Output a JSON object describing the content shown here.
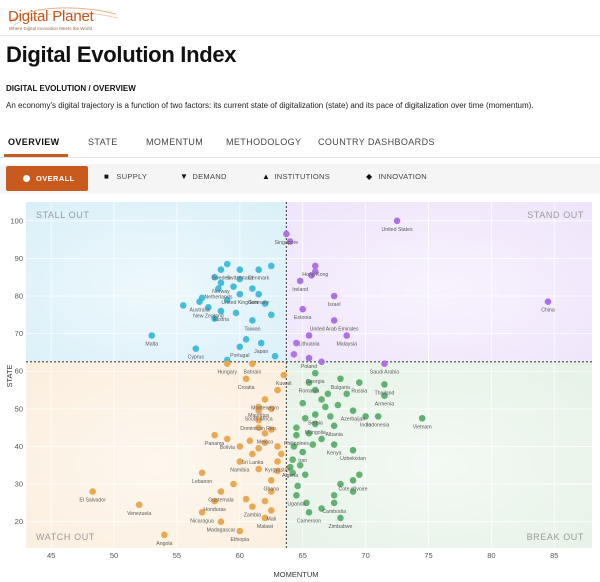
{
  "logo": {
    "name": "Digital Planet",
    "tagline": "Where Digital Innovation Meets the World"
  },
  "page_title": "Digital Evolution Index",
  "section_label": "DIGITAL EVOLUTION / OVERVIEW",
  "description": "An economy's digital trajectory is a function of two factors: its current state of digitalization (state) and its pace of digitalization over time (momentum).",
  "tabs": [
    {
      "label": "OVERVIEW",
      "active": true
    },
    {
      "label": "STATE"
    },
    {
      "label": "MOMENTUM"
    },
    {
      "label": "METHODOLOGY"
    },
    {
      "label": "COUNTRY DASHBOARDS"
    }
  ],
  "filters": [
    {
      "label": "OVERALL",
      "icon": "circle-icon",
      "active": true
    },
    {
      "label": "SUPPLY",
      "icon": "square-icon"
    },
    {
      "label": "DEMAND",
      "icon": "triangle-down-icon"
    },
    {
      "label": "INSTITUTIONS",
      "icon": "triangle-up-icon"
    },
    {
      "label": "INNOVATION",
      "icon": "diamond-icon"
    }
  ],
  "colors": {
    "accent": "#c85a1e",
    "stall_out": "#3bb7d6",
    "stand_out": "#a96ae6",
    "watch_out": "#e8a34b",
    "break_out": "#5aab6b"
  },
  "chart_data": {
    "type": "scatter",
    "xlabel": "MOMENTUM",
    "ylabel": "STATE",
    "xlim": [
      43,
      88
    ],
    "ylim": [
      13,
      105
    ],
    "xticks": [
      45,
      50,
      55,
      60,
      65,
      70,
      75,
      80,
      85
    ],
    "yticks": [
      20,
      30,
      40,
      50,
      60,
      70,
      80,
      90,
      100
    ],
    "divider": {
      "x": 63.7,
      "y": 62.5
    },
    "quadrants": [
      {
        "key": "stall_out",
        "label": "STALL OUT",
        "position": "top-left"
      },
      {
        "key": "stand_out",
        "label": "STAND OUT",
        "position": "top-right"
      },
      {
        "key": "watch_out",
        "label": "WATCH OUT",
        "position": "bottom-left"
      },
      {
        "key": "break_out",
        "label": "BREAK OUT",
        "position": "bottom-right"
      }
    ],
    "labeled_points": [
      {
        "name": "United States",
        "x": 72.5,
        "y": 100,
        "q": "stand_out"
      },
      {
        "name": "Singapore",
        "x": 63.7,
        "y": 96.5,
        "q": "stand_out"
      },
      {
        "name": "China",
        "x": 84.5,
        "y": 78.5,
        "q": "stand_out"
      },
      {
        "name": "Hong Kong",
        "x": 66,
        "y": 88,
        "q": "stand_out"
      },
      {
        "name": "Ireland",
        "x": 64.8,
        "y": 84,
        "q": "stand_out"
      },
      {
        "name": "Israel",
        "x": 67.5,
        "y": 80,
        "q": "stand_out"
      },
      {
        "name": "Estonia",
        "x": 65,
        "y": 76.5,
        "q": "stand_out"
      },
      {
        "name": "United Arab Emirates",
        "x": 67.5,
        "y": 73.5,
        "q": "stand_out"
      },
      {
        "name": "Lithuania",
        "x": 65.5,
        "y": 69.5,
        "q": "stand_out"
      },
      {
        "name": "Malaysia",
        "x": 68.5,
        "y": 69.5,
        "q": "stand_out"
      },
      {
        "name": "Poland",
        "x": 65.5,
        "y": 63.5,
        "q": "stand_out"
      },
      {
        "name": "Saudi Arabia",
        "x": 71.5,
        "y": 62,
        "q": "stand_out"
      },
      {
        "name": "Sweden",
        "x": 58.5,
        "y": 87,
        "q": "stall_out"
      },
      {
        "name": "Switzerland",
        "x": 60,
        "y": 87,
        "q": "stall_out"
      },
      {
        "name": "Denmark",
        "x": 61.5,
        "y": 87,
        "q": "stall_out"
      },
      {
        "name": "Norway",
        "x": 58.5,
        "y": 83.5,
        "q": "stall_out"
      },
      {
        "name": "Netherlands",
        "x": 58.3,
        "y": 82,
        "q": "stall_out"
      },
      {
        "name": "United Kingdom",
        "x": 60,
        "y": 80.5,
        "q": "stall_out"
      },
      {
        "name": "Germany",
        "x": 61.5,
        "y": 80.5,
        "q": "stall_out"
      },
      {
        "name": "Australia",
        "x": 56.8,
        "y": 78.5,
        "q": "stall_out"
      },
      {
        "name": "New Zealand",
        "x": 57.5,
        "y": 77,
        "q": "stall_out"
      },
      {
        "name": "Austria",
        "x": 58.5,
        "y": 76,
        "q": "stall_out"
      },
      {
        "name": "Taiwan",
        "x": 61,
        "y": 73.5,
        "q": "stall_out"
      },
      {
        "name": "Malta",
        "x": 53,
        "y": 69.5,
        "q": "stall_out"
      },
      {
        "name": "Cyprus",
        "x": 56.5,
        "y": 66,
        "q": "stall_out"
      },
      {
        "name": "Portugal",
        "x": 60,
        "y": 66.5,
        "q": "stall_out"
      },
      {
        "name": "Japan",
        "x": 61.7,
        "y": 67.5,
        "q": "stall_out"
      },
      {
        "name": "Hungary",
        "x": 59,
        "y": 62,
        "q": "watch_out"
      },
      {
        "name": "Bahrain",
        "x": 61,
        "y": 62,
        "q": "watch_out"
      },
      {
        "name": "Croatia",
        "x": 60.5,
        "y": 58,
        "q": "watch_out"
      },
      {
        "name": "Kuwait",
        "x": 63.5,
        "y": 59,
        "q": "watch_out"
      },
      {
        "name": "Montenegro",
        "x": 62,
        "y": 52.5,
        "q": "watch_out"
      },
      {
        "name": "Mauritius",
        "x": 61.5,
        "y": 50.5,
        "q": "watch_out"
      },
      {
        "name": "South Africa",
        "x": 61.5,
        "y": 49.5,
        "q": "watch_out"
      },
      {
        "name": "Dominican Rep.",
        "x": 61.5,
        "y": 47,
        "q": "watch_out"
      },
      {
        "name": "Mexico",
        "x": 62,
        "y": 43.5,
        "q": "watch_out"
      },
      {
        "name": "Panama",
        "x": 58,
        "y": 43,
        "q": "watch_out"
      },
      {
        "name": "Bolivia",
        "x": 59,
        "y": 42,
        "q": "watch_out"
      },
      {
        "name": "Sri Lanka",
        "x": 61,
        "y": 38,
        "q": "watch_out"
      },
      {
        "name": "Namibia",
        "x": 60,
        "y": 36,
        "q": "watch_out"
      },
      {
        "name": "Kyrgyzstan",
        "x": 63,
        "y": 36,
        "q": "watch_out"
      },
      {
        "name": "Lebanon",
        "x": 57,
        "y": 33,
        "q": "watch_out"
      },
      {
        "name": "Ghana",
        "x": 62.5,
        "y": 31,
        "q": "watch_out"
      },
      {
        "name": "Guatemala",
        "x": 58.5,
        "y": 28,
        "q": "watch_out"
      },
      {
        "name": "Honduras",
        "x": 58,
        "y": 25.5,
        "q": "watch_out"
      },
      {
        "name": "El Salvador",
        "x": 48.3,
        "y": 28,
        "q": "watch_out"
      },
      {
        "name": "Venezuela",
        "x": 52,
        "y": 24.5,
        "q": "watch_out"
      },
      {
        "name": "Nicaragua",
        "x": 57,
        "y": 22.5,
        "q": "watch_out"
      },
      {
        "name": "Zambia",
        "x": 61,
        "y": 24,
        "q": "watch_out"
      },
      {
        "name": "Mali",
        "x": 62.5,
        "y": 23,
        "q": "watch_out"
      },
      {
        "name": "Madagascar",
        "x": 58.5,
        "y": 20,
        "q": "watch_out"
      },
      {
        "name": "Malawi",
        "x": 62,
        "y": 21,
        "q": "watch_out"
      },
      {
        "name": "Angola",
        "x": 54,
        "y": 16.5,
        "q": "watch_out"
      },
      {
        "name": "Ethiopia",
        "x": 60,
        "y": 17.5,
        "q": "watch_out"
      },
      {
        "name": "Georgia",
        "x": 66,
        "y": 59.5,
        "q": "break_out"
      },
      {
        "name": "Romania",
        "x": 65.5,
        "y": 57,
        "q": "break_out"
      },
      {
        "name": "Bulgaria",
        "x": 68,
        "y": 58,
        "q": "break_out"
      },
      {
        "name": "Russia",
        "x": 69.5,
        "y": 57,
        "q": "break_out"
      },
      {
        "name": "Thailand",
        "x": 71.5,
        "y": 56.5,
        "q": "break_out"
      },
      {
        "name": "Armenia",
        "x": 71.5,
        "y": 53.5,
        "q": "break_out"
      },
      {
        "name": "Azerbaijan",
        "x": 69,
        "y": 49.5,
        "q": "break_out"
      },
      {
        "name": "Serbia",
        "x": 66,
        "y": 48.5,
        "q": "break_out"
      },
      {
        "name": "Mongolia",
        "x": 66,
        "y": 46,
        "q": "break_out"
      },
      {
        "name": "Albania",
        "x": 67.5,
        "y": 45.5,
        "q": "break_out"
      },
      {
        "name": "India",
        "x": 70,
        "y": 48,
        "q": "break_out"
      },
      {
        "name": "Indonesia",
        "x": 71,
        "y": 48,
        "q": "break_out"
      },
      {
        "name": "Vietnam",
        "x": 74.5,
        "y": 47.5,
        "q": "break_out"
      },
      {
        "name": "Philippines",
        "x": 64.5,
        "y": 43,
        "q": "break_out"
      },
      {
        "name": "Kenya",
        "x": 67.5,
        "y": 40.5,
        "q": "break_out"
      },
      {
        "name": "Uzbekistan",
        "x": 69,
        "y": 39,
        "q": "break_out"
      },
      {
        "name": "Iran",
        "x": 65,
        "y": 38.5,
        "q": "break_out"
      },
      {
        "name": "Algeria",
        "x": 64,
        "y": 34.5,
        "q": "break_out"
      },
      {
        "name": "Cote d'Ivoire",
        "x": 69,
        "y": 31,
        "q": "break_out"
      },
      {
        "name": "Uganda",
        "x": 64.5,
        "y": 27,
        "q": "break_out"
      },
      {
        "name": "Cambodia",
        "x": 67.5,
        "y": 25,
        "q": "break_out"
      },
      {
        "name": "Cameroon",
        "x": 65.5,
        "y": 22.5,
        "q": "break_out"
      },
      {
        "name": "Zimbabwe",
        "x": 68,
        "y": 21,
        "q": "break_out"
      }
    ],
    "unlabeled_points": [
      {
        "x": 62.5,
        "y": 88,
        "q": "stall_out"
      },
      {
        "x": 59,
        "y": 88.5,
        "q": "stall_out"
      },
      {
        "x": 58,
        "y": 85,
        "q": "stall_out"
      },
      {
        "x": 60,
        "y": 84.5,
        "q": "stall_out"
      },
      {
        "x": 59.5,
        "y": 82.5,
        "q": "stall_out"
      },
      {
        "x": 61,
        "y": 82,
        "q": "stall_out"
      },
      {
        "x": 57,
        "y": 79.5,
        "q": "stall_out"
      },
      {
        "x": 59,
        "y": 79,
        "q": "stall_out"
      },
      {
        "x": 55.5,
        "y": 77.5,
        "q": "stall_out"
      },
      {
        "x": 62,
        "y": 78,
        "q": "stall_out"
      },
      {
        "x": 58,
        "y": 74,
        "q": "stall_out"
      },
      {
        "x": 59.7,
        "y": 75.5,
        "q": "stall_out"
      },
      {
        "x": 62.5,
        "y": 75,
        "q": "stall_out"
      },
      {
        "x": 59,
        "y": 63,
        "q": "stall_out"
      },
      {
        "x": 60.5,
        "y": 68.5,
        "q": "stall_out"
      },
      {
        "x": 62.8,
        "y": 64,
        "q": "stall_out"
      },
      {
        "x": 64,
        "y": 94.5,
        "q": "stand_out"
      },
      {
        "x": 66,
        "y": 86.5,
        "q": "stand_out"
      },
      {
        "x": 65.7,
        "y": 85.5,
        "q": "stand_out"
      },
      {
        "x": 64.5,
        "y": 67.5,
        "q": "stand_out"
      },
      {
        "x": 66.5,
        "y": 62.5,
        "q": "stand_out"
      },
      {
        "x": 64.3,
        "y": 64.5,
        "q": "stand_out"
      },
      {
        "x": 63,
        "y": 55,
        "q": "watch_out"
      },
      {
        "x": 62.5,
        "y": 50,
        "q": "watch_out"
      },
      {
        "x": 61.5,
        "y": 45,
        "q": "watch_out"
      },
      {
        "x": 62.5,
        "y": 44.5,
        "q": "watch_out"
      },
      {
        "x": 60.8,
        "y": 41.5,
        "q": "watch_out"
      },
      {
        "x": 62,
        "y": 41,
        "q": "watch_out"
      },
      {
        "x": 63,
        "y": 40,
        "q": "watch_out"
      },
      {
        "x": 61.5,
        "y": 39.5,
        "q": "watch_out"
      },
      {
        "x": 60,
        "y": 40,
        "q": "watch_out"
      },
      {
        "x": 63.3,
        "y": 38,
        "q": "watch_out"
      },
      {
        "x": 61.5,
        "y": 34,
        "q": "watch_out"
      },
      {
        "x": 63,
        "y": 33.5,
        "q": "watch_out"
      },
      {
        "x": 62.5,
        "y": 28,
        "q": "watch_out"
      },
      {
        "x": 59.5,
        "y": 30,
        "q": "watch_out"
      },
      {
        "x": 62,
        "y": 25.5,
        "q": "watch_out"
      },
      {
        "x": 60.5,
        "y": 26,
        "q": "watch_out"
      },
      {
        "x": 66,
        "y": 55,
        "q": "break_out"
      },
      {
        "x": 67,
        "y": 54,
        "q": "break_out"
      },
      {
        "x": 68.5,
        "y": 54,
        "q": "break_out"
      },
      {
        "x": 66.5,
        "y": 52.5,
        "q": "break_out"
      },
      {
        "x": 67.8,
        "y": 51,
        "q": "break_out"
      },
      {
        "x": 65,
        "y": 51.5,
        "q": "break_out"
      },
      {
        "x": 66.8,
        "y": 50.5,
        "q": "break_out"
      },
      {
        "x": 65.2,
        "y": 47.5,
        "q": "break_out"
      },
      {
        "x": 67.2,
        "y": 48,
        "q": "break_out"
      },
      {
        "x": 64.5,
        "y": 45,
        "q": "break_out"
      },
      {
        "x": 65.5,
        "y": 43.5,
        "q": "break_out"
      },
      {
        "x": 66.5,
        "y": 42,
        "q": "break_out"
      },
      {
        "x": 64.3,
        "y": 40,
        "q": "break_out"
      },
      {
        "x": 65.8,
        "y": 40.5,
        "q": "break_out"
      },
      {
        "x": 64.2,
        "y": 36.5,
        "q": "break_out"
      },
      {
        "x": 64.8,
        "y": 35,
        "q": "break_out"
      },
      {
        "x": 64.2,
        "y": 33,
        "q": "break_out"
      },
      {
        "x": 65.2,
        "y": 32.5,
        "q": "break_out"
      },
      {
        "x": 69.5,
        "y": 32.5,
        "q": "break_out"
      },
      {
        "x": 68,
        "y": 30,
        "q": "break_out"
      },
      {
        "x": 64.6,
        "y": 29.5,
        "q": "break_out"
      },
      {
        "x": 65.3,
        "y": 25,
        "q": "break_out"
      },
      {
        "x": 66.5,
        "y": 23.5,
        "q": "break_out"
      },
      {
        "x": 69,
        "y": 28,
        "q": "break_out"
      },
      {
        "x": 67.5,
        "y": 27,
        "q": "break_out"
      }
    ]
  }
}
